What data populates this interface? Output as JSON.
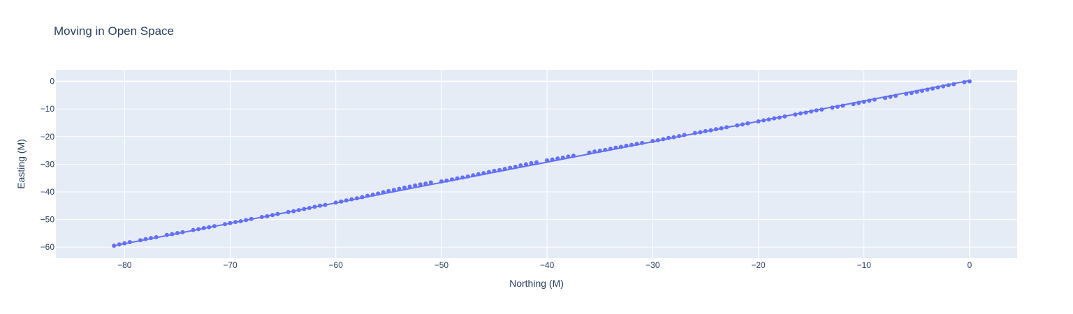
{
  "chart_data": {
    "type": "scatter",
    "title": "Moving in Open Space",
    "xlabel": "Northing (M)",
    "ylabel": "Easting (M)",
    "xlim": [
      -86.5,
      4.5
    ],
    "ylim": [
      -64.0,
      4.2
    ],
    "x_ticks": [
      -80,
      -70,
      -60,
      -50,
      -40,
      -30,
      -20,
      -10,
      0
    ],
    "y_ticks": [
      0,
      -10,
      -20,
      -30,
      -40,
      -50,
      -60
    ],
    "x_tick_labels": [
      "−80",
      "−70",
      "−60",
      "−50",
      "−40",
      "−30",
      "−20",
      "−10",
      "0"
    ],
    "y_tick_labels": [
      "0",
      "−10",
      "−20",
      "−30",
      "−40",
      "−50",
      "−60"
    ],
    "grid": true,
    "legend": "none",
    "colors": {
      "marker": "#636efa",
      "plot_bg": "#e5ecf6",
      "grid": "#ffffff",
      "text": "#2a3f5f"
    },
    "series": [
      {
        "mode": "markers",
        "x": [
          0,
          -0.5,
          -1.5,
          -2.0,
          -2.5,
          -3.0,
          -3.5,
          -4.0,
          -4.5,
          -5.0,
          -5.5,
          -6.0,
          -7.0,
          -7.5,
          -8.0,
          -9.0,
          -9.5,
          -10.0,
          -10.5,
          -11.0,
          -12.0,
          -12.5,
          -13.0,
          -14.0,
          -14.5,
          -15.0,
          -15.5,
          -16.0,
          -16.5,
          -17.5,
          -18.0,
          -18.5,
          -19.0,
          -19.5,
          -20.0,
          -21.0,
          -21.5,
          -22.0,
          -23.0,
          -23.5,
          -24.0,
          -24.5,
          -25.0,
          -25.5,
          -26.0,
          -27.0,
          -27.5,
          -28.0,
          -28.5,
          -29.0,
          -29.5,
          -30.0,
          -31.0,
          -31.5,
          -32.0,
          -32.5,
          -33.0,
          -33.5,
          -34.0,
          -34.5,
          -35.0,
          -35.5,
          -36.0,
          -37.5,
          -38.0,
          -38.5,
          -39.0,
          -39.5,
          -40.0,
          -41.0,
          -41.5,
          -42.0,
          -42.5,
          -43.0,
          -43.5,
          -44.0,
          -44.5,
          -45.0,
          -45.5,
          -46.0,
          -46.5,
          -47.0,
          -47.5,
          -48.0,
          -48.5,
          -49.0,
          -49.5,
          -50.0,
          -51.0,
          -51.5,
          -52.0,
          -52.5,
          -53.0,
          -53.5,
          -54.0,
          -54.5,
          -55.0,
          -55.5,
          -56.0,
          -56.5,
          -57.0,
          -57.5,
          -58.0,
          -58.5,
          -59.0,
          -59.5,
          -60.0,
          -61.0,
          -61.5,
          -62.0,
          -62.5,
          -63.0,
          -63.5,
          -64.0,
          -64.5,
          -65.5,
          -66.0,
          -66.5,
          -67.0,
          -68.0,
          -68.5,
          -69.0,
          -69.5,
          -70.0,
          -70.5,
          -71.5,
          -72.0,
          -72.5,
          -73.0,
          -73.5,
          -74.5,
          -75.0,
          -75.5,
          -76.0,
          -77.0,
          -77.5,
          -78.0,
          -78.5,
          -79.5,
          -80.0,
          -80.5,
          -81.0
        ],
        "y": [
          0,
          -0.3,
          -1.0,
          -1.4,
          -1.8,
          -2.2,
          -2.6,
          -3.0,
          -3.4,
          -3.8,
          -4.2,
          -4.5,
          -5.2,
          -5.6,
          -6.0,
          -6.6,
          -7.0,
          -7.4,
          -7.8,
          -8.2,
          -8.8,
          -9.2,
          -9.5,
          -10.2,
          -10.5,
          -10.9,
          -11.3,
          -11.6,
          -12.0,
          -12.7,
          -13.1,
          -13.4,
          -13.8,
          -14.1,
          -14.5,
          -15.2,
          -15.6,
          -15.9,
          -16.6,
          -17.0,
          -17.3,
          -17.7,
          -18.0,
          -18.4,
          -18.7,
          -19.4,
          -19.8,
          -20.2,
          -20.5,
          -20.9,
          -21.3,
          -21.6,
          -22.3,
          -22.6,
          -23.0,
          -23.3,
          -23.7,
          -24.0,
          -24.4,
          -24.8,
          -25.1,
          -25.4,
          -25.8,
          -26.9,
          -27.2,
          -27.6,
          -27.9,
          -28.3,
          -28.6,
          -29.3,
          -29.6,
          -30.0,
          -30.4,
          -30.9,
          -31.3,
          -31.7,
          -32.1,
          -32.4,
          -32.8,
          -33.2,
          -33.6,
          -34.0,
          -34.4,
          -34.8,
          -35.1,
          -35.5,
          -35.9,
          -36.2,
          -36.6,
          -37.0,
          -37.3,
          -37.7,
          -38.1,
          -38.5,
          -38.9,
          -39.3,
          -39.7,
          -40.1,
          -40.6,
          -41.0,
          -41.4,
          -41.9,
          -42.3,
          -42.7,
          -43.1,
          -43.5,
          -43.9,
          -44.7,
          -45.0,
          -45.4,
          -45.8,
          -46.2,
          -46.6,
          -47.0,
          -47.3,
          -48.0,
          -48.4,
          -48.8,
          -49.1,
          -49.8,
          -50.2,
          -50.6,
          -50.9,
          -51.3,
          -51.7,
          -52.4,
          -52.8,
          -53.1,
          -53.5,
          -53.8,
          -54.6,
          -54.9,
          -55.3,
          -55.6,
          -56.4,
          -56.7,
          -57.1,
          -57.5,
          -58.2,
          -58.6,
          -59.0,
          -59.5
        ]
      },
      {
        "mode": "lines",
        "x": [
          -81,
          0
        ],
        "y": [
          -59.5,
          0.3
        ]
      }
    ]
  }
}
